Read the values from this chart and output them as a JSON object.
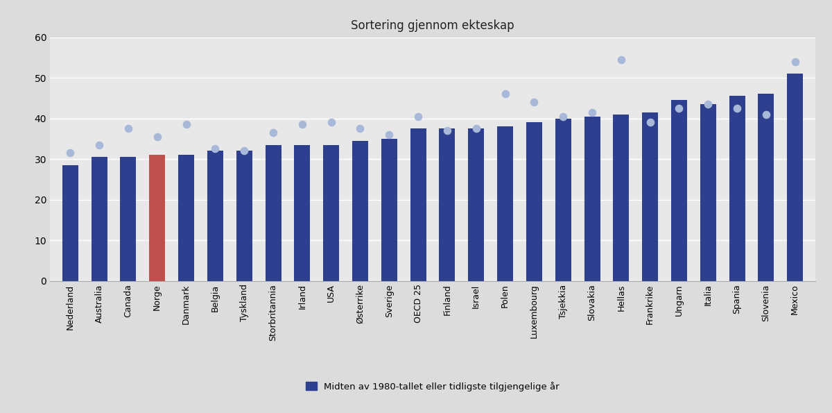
{
  "title": "Sortering gjennom ekteskap",
  "categories": [
    "Nederland",
    "Australia",
    "Canada",
    "Norge",
    "Danmark",
    "Belgia",
    "Tyskland",
    "Storbritannia",
    "Irland",
    "USA",
    "Østerrike",
    "Sverige",
    "OECD 25",
    "Finland",
    "Israel",
    "Polen",
    "Luxembourg",
    "Tsjekkia",
    "Slovakia",
    "Hellas",
    "Frankrike",
    "Ungarn",
    "Italia",
    "Spania",
    "Slovenia",
    "Mexico"
  ],
  "bar_values": [
    28.5,
    30.5,
    30.5,
    31.0,
    31.0,
    32.0,
    32.0,
    33.5,
    33.5,
    33.5,
    34.5,
    35.0,
    37.5,
    37.5,
    37.5,
    38.0,
    39.0,
    40.0,
    40.5,
    41.0,
    41.5,
    44.5,
    43.5,
    45.5,
    46.0,
    51.0
  ],
  "dot_values": [
    31.5,
    33.5,
    37.5,
    35.5,
    38.5,
    32.5,
    32.0,
    36.5,
    38.5,
    39.0,
    37.5,
    36.0,
    40.5,
    37.0,
    37.5,
    46.0,
    44.0,
    40.5,
    41.5,
    54.5,
    39.0,
    42.5,
    43.5,
    42.5,
    41.0,
    54.0
  ],
  "bar_colors": [
    "#2e3f8f",
    "#2e3f8f",
    "#2e3f8f",
    "#c0504d",
    "#2e3f8f",
    "#2e3f8f",
    "#2e3f8f",
    "#2e3f8f",
    "#2e3f8f",
    "#2e3f8f",
    "#2e3f8f",
    "#2e3f8f",
    "#2e3f8f",
    "#2e3f8f",
    "#2e3f8f",
    "#2e3f8f",
    "#2e3f8f",
    "#2e3f8f",
    "#2e3f8f",
    "#2e3f8f",
    "#2e3f8f",
    "#2e3f8f",
    "#2e3f8f",
    "#2e3f8f",
    "#2e3f8f",
    "#2e3f8f"
  ],
  "dot_color": "#a8b8d8",
  "legend_label": "Midten av 1980-tallet eller tidligste tilgjengelige år",
  "legend_color": "#2e3f8f",
  "ylim": [
    0,
    60
  ],
  "yticks": [
    0,
    10,
    20,
    30,
    40,
    50,
    60
  ],
  "figure_bg_color": "#dcdcdc",
  "plot_bg_color": "#e8e8e8",
  "grid_color": "#ffffff",
  "title_fontsize": 12,
  "tick_fontsize": 9,
  "bar_width": 0.55
}
